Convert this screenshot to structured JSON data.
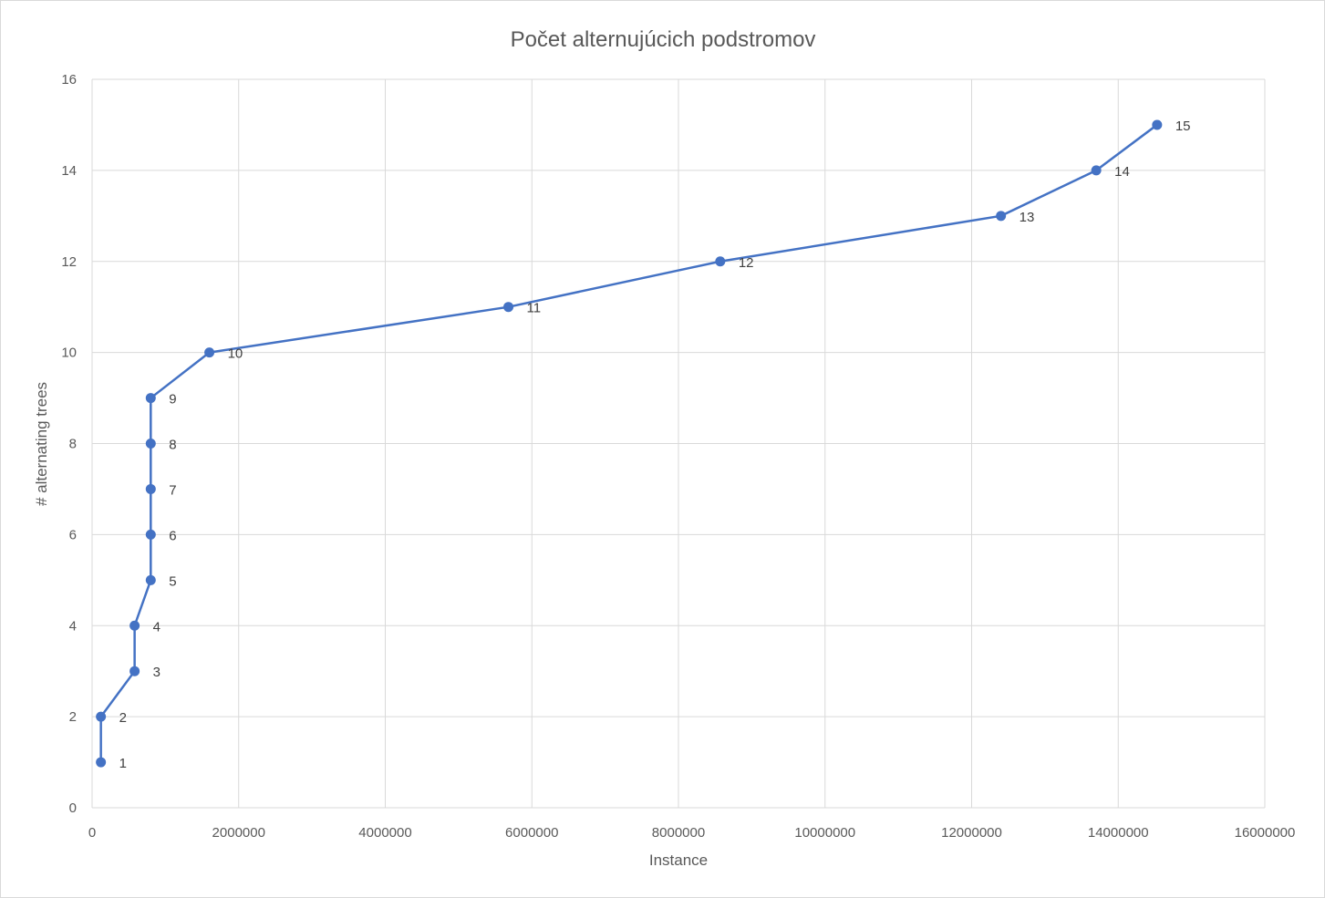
{
  "chart_data": {
    "type": "scatter",
    "title": "Počet alternujúcich podstromov",
    "xlabel": "Instance",
    "ylabel": "# alternating trees",
    "xlim": [
      0,
      16000000
    ],
    "ylim": [
      0,
      16
    ],
    "x_ticks": [
      0,
      2000000,
      4000000,
      6000000,
      8000000,
      10000000,
      12000000,
      14000000,
      16000000
    ],
    "x_tick_labels": [
      "0",
      "2000000",
      "4000000",
      "6000000",
      "8000000",
      "10000000",
      "12000000",
      "14000000",
      "16000000"
    ],
    "y_ticks": [
      0,
      2,
      4,
      6,
      8,
      10,
      12,
      14,
      16
    ],
    "y_tick_labels": [
      "0",
      "2",
      "4",
      "6",
      "8",
      "10",
      "12",
      "14",
      "16"
    ],
    "grid": true,
    "line_style": "straight-lines-with-markers",
    "series": [
      {
        "color": "#4472c4",
        "points": [
          {
            "x": 120000,
            "y": 1,
            "label": "1"
          },
          {
            "x": 120000,
            "y": 2,
            "label": "2"
          },
          {
            "x": 580000,
            "y": 3,
            "label": "3"
          },
          {
            "x": 580000,
            "y": 4,
            "label": "4"
          },
          {
            "x": 800000,
            "y": 5,
            "label": "5"
          },
          {
            "x": 800000,
            "y": 6,
            "label": "6"
          },
          {
            "x": 800000,
            "y": 7,
            "label": "7"
          },
          {
            "x": 800000,
            "y": 8,
            "label": "8"
          },
          {
            "x": 800000,
            "y": 9,
            "label": "9"
          },
          {
            "x": 1600000,
            "y": 10,
            "label": "10"
          },
          {
            "x": 5680000,
            "y": 11,
            "label": "11"
          },
          {
            "x": 8570000,
            "y": 12,
            "label": "12"
          },
          {
            "x": 12400000,
            "y": 13,
            "label": "13"
          },
          {
            "x": 13700000,
            "y": 14,
            "label": "14"
          },
          {
            "x": 14530000,
            "y": 15,
            "label": "15"
          }
        ]
      }
    ]
  }
}
